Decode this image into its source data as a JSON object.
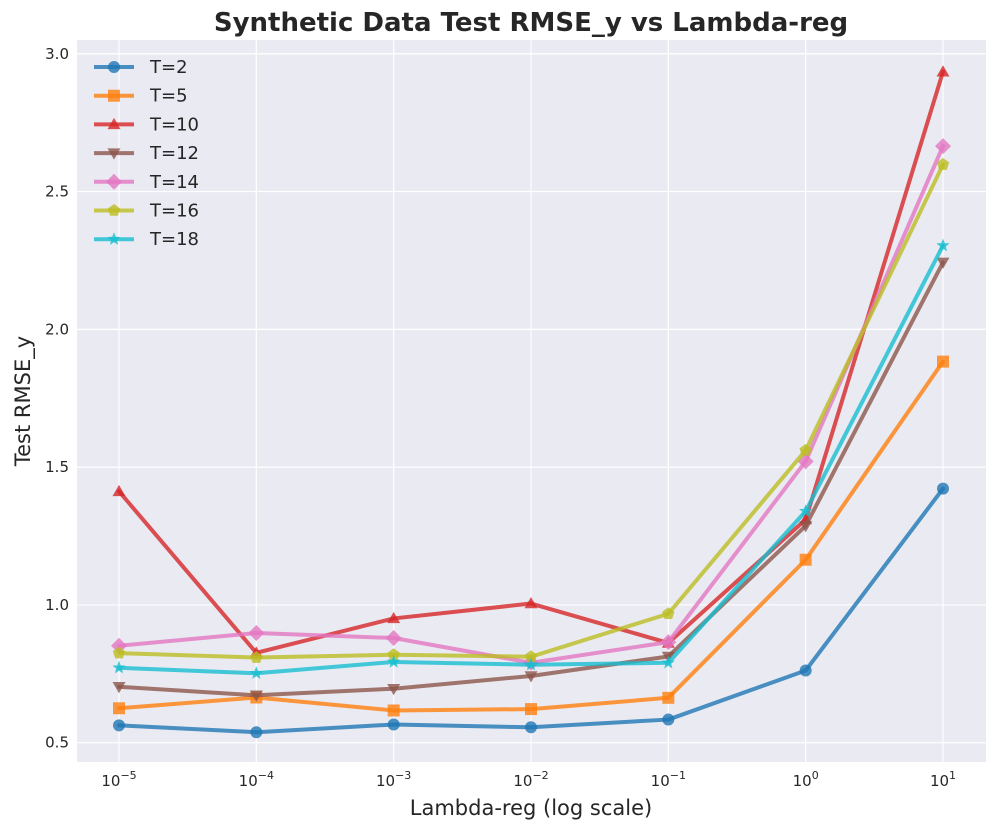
{
  "chart_data": {
    "type": "line",
    "title": "Synthetic Data Test RMSE_y vs Lambda-reg",
    "xlabel": "Lambda-reg (log scale)",
    "ylabel": "Test RMSE_y",
    "x_scale": "log",
    "x": [
      1e-05,
      0.0001,
      0.001,
      0.01,
      0.1,
      1,
      10
    ],
    "x_tick_labels": [
      {
        "base": "10",
        "exp": "−5"
      },
      {
        "base": "10",
        "exp": "−4"
      },
      {
        "base": "10",
        "exp": "−3"
      },
      {
        "base": "10",
        "exp": "−2"
      },
      {
        "base": "10",
        "exp": "−1"
      },
      {
        "base": "10",
        "exp": "0"
      },
      {
        "base": "10",
        "exp": "1"
      }
    ],
    "y_ticks": [
      "0.5",
      "1.0",
      "1.5",
      "2.0",
      "2.5",
      "3.0"
    ],
    "ylim": [
      0.43,
      3.05
    ],
    "grid": true,
    "legend_position": "top-left",
    "series": [
      {
        "name": "T=2",
        "color": "#1f77b4",
        "marker": "circle",
        "values": [
          0.563,
          0.538,
          0.566,
          0.556,
          0.584,
          0.762,
          1.422
        ]
      },
      {
        "name": "T=5",
        "color": "#ff7f0e",
        "marker": "square",
        "values": [
          0.625,
          0.664,
          0.617,
          0.622,
          0.663,
          1.164,
          1.883
        ]
      },
      {
        "name": "T=10",
        "color": "#d62728",
        "marker": "triangle-up",
        "values": [
          1.412,
          0.826,
          0.951,
          1.005,
          0.862,
          1.31,
          2.935
        ]
      },
      {
        "name": "T=12",
        "color": "#8c564b",
        "marker": "triangle-down",
        "values": [
          0.703,
          0.672,
          0.696,
          0.742,
          0.813,
          1.287,
          2.243
        ]
      },
      {
        "name": "T=14",
        "color": "#e377c2",
        "marker": "diamond",
        "values": [
          0.852,
          0.898,
          0.88,
          0.79,
          0.865,
          1.521,
          2.665
        ]
      },
      {
        "name": "T=16",
        "color": "#bcbd22",
        "marker": "pentagon",
        "values": [
          0.825,
          0.809,
          0.819,
          0.812,
          0.968,
          1.561,
          2.598
        ]
      },
      {
        "name": "T=18",
        "color": "#17becf",
        "marker": "star",
        "values": [
          0.772,
          0.752,
          0.793,
          0.783,
          0.79,
          1.34,
          2.304
        ]
      }
    ]
  }
}
